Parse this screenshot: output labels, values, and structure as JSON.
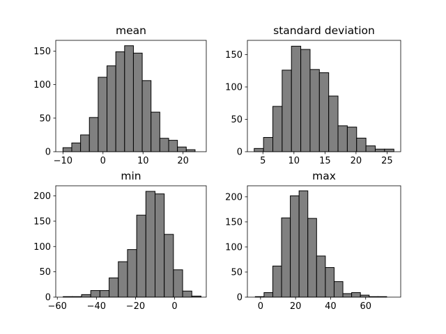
{
  "chart_data": [
    {
      "type": "bar",
      "title": "mean",
      "xlabel": "",
      "ylabel": "",
      "xlim": [
        -11.8,
        25.8
      ],
      "ylim": [
        0,
        166
      ],
      "xticks": [
        -10,
        0,
        10,
        20
      ],
      "yticks": [
        0,
        50,
        100,
        150
      ],
      "bin_edges": [
        -10.0,
        -7.8,
        -5.6,
        -3.4,
        -1.2,
        1.0,
        3.2,
        5.4,
        7.6,
        9.8,
        12.0,
        14.2,
        16.4,
        18.6,
        20.8,
        23.0
      ],
      "values": [
        6,
        13,
        25,
        51,
        111,
        128,
        149,
        158,
        147,
        106,
        59,
        20,
        17,
        7,
        3
      ],
      "bar_color": "#808080",
      "edge_color": "#000000"
    },
    {
      "type": "bar",
      "title": "standard deviation",
      "xlabel": "",
      "ylabel": "",
      "xlim": [
        2.5,
        27.2
      ],
      "ylim": [
        0,
        172
      ],
      "xticks": [
        5,
        10,
        15,
        20,
        25
      ],
      "yticks": [
        0,
        50,
        100,
        150
      ],
      "bin_edges": [
        3.6,
        5.1,
        6.6,
        8.1,
        9.6,
        11.1,
        12.6,
        14.1,
        15.6,
        17.1,
        18.6,
        20.1,
        21.6,
        23.1,
        24.6,
        26.1
      ],
      "values": [
        5,
        22,
        70,
        126,
        163,
        158,
        127,
        122,
        86,
        40,
        38,
        21,
        9,
        4,
        4
      ],
      "bar_color": "#808080",
      "edge_color": "#000000"
    },
    {
      "type": "bar",
      "title": "min",
      "xlabel": "",
      "ylabel": "",
      "xlim": [
        -60.8,
        16.2
      ],
      "ylim": [
        0,
        220
      ],
      "xticks": [
        -60,
        -40,
        -20,
        0
      ],
      "yticks": [
        0,
        50,
        100,
        150,
        200
      ],
      "bin_edges": [
        -57.0,
        -52.3,
        -47.6,
        -42.9,
        -38.2,
        -33.5,
        -28.8,
        -24.1,
        -19.4,
        -14.7,
        -10.0,
        -5.3,
        -0.6,
        4.1,
        8.8,
        13.5
      ],
      "values": [
        1,
        1,
        5,
        13,
        13,
        38,
        70,
        94,
        162,
        209,
        204,
        124,
        54,
        12,
        2
      ],
      "bar_color": "#808080",
      "edge_color": "#000000"
    },
    {
      "type": "bar",
      "title": "max",
      "xlabel": "",
      "ylabel": "",
      "xlim": [
        -7.5,
        80.0
      ],
      "ylim": [
        0,
        222
      ],
      "xticks": [
        0,
        20,
        40,
        60
      ],
      "yticks": [
        0,
        50,
        100,
        150,
        200
      ],
      "bin_edges": [
        -3.0,
        2.0,
        7.0,
        12.0,
        17.0,
        22.0,
        27.0,
        32.0,
        37.0,
        42.0,
        47.0,
        52.0,
        57.0,
        62.0,
        67.0,
        72.0
      ],
      "values": [
        1,
        9,
        62,
        158,
        202,
        212,
        157,
        82,
        59,
        31,
        7,
        9,
        4,
        1,
        1
      ],
      "bar_color": "#808080",
      "edge_color": "#000000"
    }
  ]
}
